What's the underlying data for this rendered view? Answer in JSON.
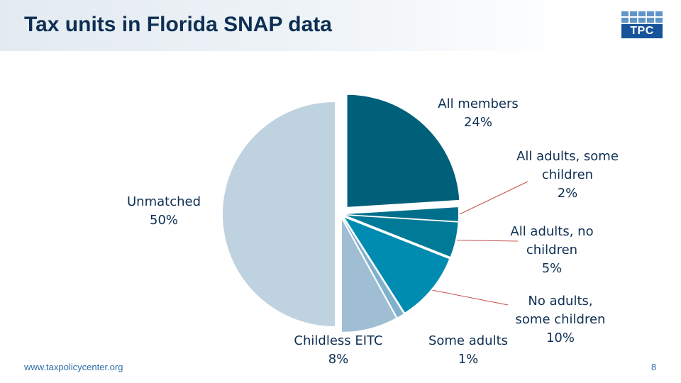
{
  "header": {
    "title": "Tax units in Florida SNAP data"
  },
  "logo": {
    "text": "TPC"
  },
  "footer": {
    "url": "www.taxpolicycenter.org",
    "page": "8"
  },
  "leader_color": "#c0504d",
  "chart_data": {
    "type": "pie",
    "title": "Tax units in Florida SNAP data",
    "slices": [
      {
        "label": "All members",
        "value": 24,
        "value_label": "24%",
        "color": "#00607a"
      },
      {
        "label": "All adults, some children",
        "value": 2,
        "value_label": "2%",
        "color": "#006f8c"
      },
      {
        "label": "All adults, no children",
        "value": 5,
        "value_label": "5%",
        "color": "#007a96"
      },
      {
        "label": "No adults, some children",
        "value": 10,
        "value_label": "10%",
        "color": "#008bb0"
      },
      {
        "label": "Some adults",
        "value": 1,
        "value_label": "1%",
        "color": "#7fb0cc"
      },
      {
        "label": "Childless EITC",
        "value": 8,
        "value_label": "8%",
        "color": "#9fbdd3"
      },
      {
        "label": "Unmatched",
        "value": 50,
        "value_label": "50%",
        "color": "#bfd2df"
      }
    ]
  }
}
